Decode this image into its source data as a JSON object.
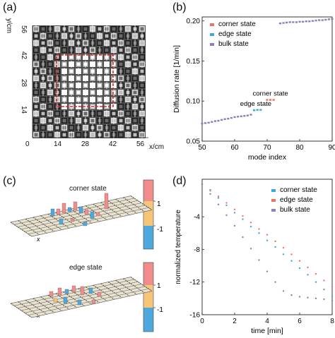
{
  "panels": {
    "a": {
      "label": "(a)",
      "y_unit": "y/cm",
      "x_unit": "x/cm",
      "y_ticks": [
        "56",
        "42",
        "28",
        "14"
      ],
      "x_ticks": [
        "0",
        "14",
        "28",
        "42",
        "56"
      ]
    },
    "b": {
      "label": "(b)"
    },
    "c": {
      "label": "(c)",
      "top_title": "corner state",
      "bottom_title": "edge state",
      "colorbar_ticks": [
        "1",
        "-1"
      ],
      "axis_letter": "x"
    },
    "d": {
      "label": "(d)"
    }
  },
  "chart_data": [
    {
      "panel": "b",
      "type": "scatter",
      "xlabel": "mode index",
      "ylabel": "Diffusion rate [1/min]",
      "xlim": [
        50,
        90
      ],
      "ylim": [
        0.05,
        0.205
      ],
      "x_ticks": [
        50,
        60,
        70,
        80,
        90
      ],
      "y_ticks": [
        0.05,
        0.1,
        0.15,
        0.2
      ],
      "x_tick_labels": [
        "50",
        "60",
        "70",
        "80",
        "90"
      ],
      "y_tick_labels": [
        "0.05",
        "0.10",
        "0.15",
        "0.20"
      ],
      "legend_placement": "top-left",
      "annotations": [
        {
          "text": "corner state",
          "x": 71,
          "y": 0.107
        },
        {
          "text": "edge state",
          "x": 66.5,
          "y": 0.094
        }
      ],
      "series": [
        {
          "name": "corner state",
          "color": "#f07060",
          "x": [
            70,
            71,
            72
          ],
          "y": [
            0.1015,
            0.1015,
            0.1015
          ]
        },
        {
          "name": "edge state",
          "color": "#38a8e0",
          "x": [
            66,
            67,
            68
          ],
          "y": [
            0.0885,
            0.089,
            0.089
          ]
        },
        {
          "name": "bulk state",
          "color": "#8e7fb8",
          "x": [
            50,
            51,
            52,
            53,
            54,
            55,
            56,
            57,
            58,
            59,
            60,
            61,
            62,
            63,
            64,
            65,
            74,
            75,
            76,
            77,
            78,
            79,
            80,
            81,
            82,
            83,
            84,
            85,
            86,
            87,
            88,
            89,
            90
          ],
          "y": [
            0.072,
            0.0725,
            0.073,
            0.074,
            0.075,
            0.0755,
            0.0765,
            0.0775,
            0.078,
            0.079,
            0.08,
            0.0805,
            0.081,
            0.0815,
            0.082,
            0.083,
            0.197,
            0.1975,
            0.198,
            0.1985,
            0.1985,
            0.1985,
            0.199,
            0.199,
            0.1995,
            0.1995,
            0.2,
            0.2005,
            0.201,
            0.201,
            0.2015,
            0.202,
            0.2025
          ]
        }
      ]
    },
    {
      "panel": "d",
      "type": "scatter",
      "xlabel": "time [min]",
      "ylabel": "normalized temperature",
      "xlim": [
        0,
        8
      ],
      "ylim": [
        -16,
        0.6
      ],
      "x_ticks": [
        0,
        2,
        4,
        6,
        8
      ],
      "y_ticks": [
        -4,
        -8,
        -12,
        -16
      ],
      "x_tick_labels": [
        "0",
        "2",
        "4",
        "6",
        "8"
      ],
      "y_tick_labels": [
        "-4",
        "-8",
        "-12",
        "-16"
      ],
      "legend_placement": "top-right",
      "series": [
        {
          "name": "corner state",
          "color": "#38a8e0",
          "x": [
            0,
            0.5,
            1,
            1.5,
            2,
            2.5,
            3,
            3.5,
            4,
            4.5,
            5,
            5.5,
            6,
            6.5,
            7,
            7.5,
            8
          ],
          "y": [
            0,
            -0.8,
            -1.7,
            -2.6,
            -3.5,
            -4.3,
            -5.2,
            -6.0,
            -6.9,
            -7.7,
            -8.6,
            -9.4,
            -10.3,
            -11.1,
            -12.0,
            -12.9,
            -13.8
          ]
        },
        {
          "name": "edge state",
          "color": "#f07060",
          "x": [
            0,
            0.5,
            1,
            1.5,
            2,
            2.5,
            3,
            3.5,
            4,
            4.5,
            5,
            5.5,
            6,
            6.5,
            7,
            7.5,
            8
          ],
          "y": [
            0,
            -0.7,
            -1.5,
            -2.3,
            -3.1,
            -3.9,
            -4.7,
            -5.5,
            -6.2,
            -7.0,
            -7.8,
            -8.6,
            -9.4,
            -10.2,
            -11.0,
            -11.8,
            -12.6
          ]
        },
        {
          "name": "bulk state",
          "color": "#8e7fb8",
          "x": [
            0,
            0.5,
            1,
            1.5,
            2,
            2.5,
            3,
            3.5,
            4,
            4.5,
            5,
            5.5,
            6,
            6.5,
            7,
            7.5,
            8
          ],
          "y": [
            0,
            -1.2,
            -2.5,
            -3.8,
            -5.1,
            -6.5,
            -7.9,
            -9.3,
            -10.7,
            -12.0,
            -13.1,
            -13.6,
            -13.8,
            -13.9,
            -14.0,
            -14.1,
            -14.3
          ]
        }
      ]
    }
  ]
}
